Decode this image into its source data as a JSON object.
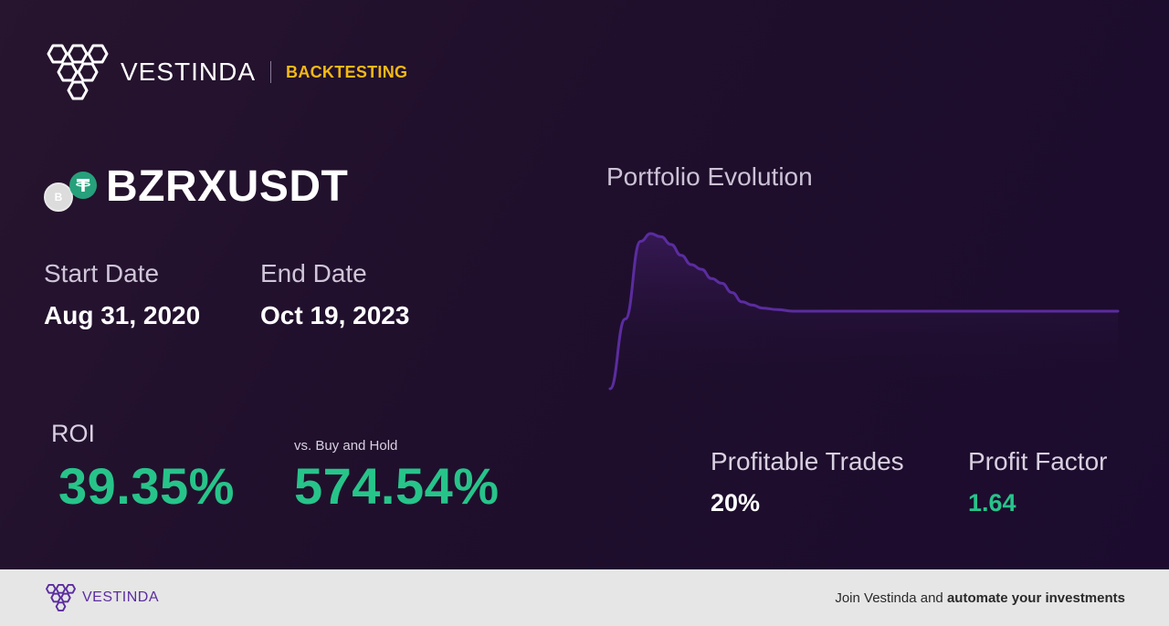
{
  "header": {
    "brand_name": "VESTINDA",
    "section_tag": "BACKTESTING"
  },
  "pair": {
    "symbol": "BZRXUSDT",
    "base_icon_letter": "B",
    "base_icon": "bzrx-coin-icon",
    "quote_icon": "tether-coin-icon"
  },
  "dates": {
    "start_label": "Start Date",
    "start_value": "Aug 31, 2020",
    "end_label": "End Date",
    "end_value": "Oct 19, 2023"
  },
  "metrics": {
    "roi_label": "ROI",
    "roi_value": "39.35%",
    "vs_label": "vs. Buy and Hold",
    "vs_value": "574.54%",
    "profitable_trades_label": "Profitable Trades",
    "profitable_trades_value": "20%",
    "profit_factor_label": "Profit Factor",
    "profit_factor_value": "1.64"
  },
  "chart": {
    "title": "Portfolio Evolution"
  },
  "chart_data": {
    "type": "area",
    "title": "Portfolio Evolution",
    "xlabel": "",
    "ylabel": "",
    "grid": false,
    "legend": "none",
    "x": [
      0,
      3,
      6,
      8,
      10,
      12,
      14,
      16,
      18,
      20,
      22,
      24,
      26,
      28,
      30,
      33,
      36,
      40,
      45,
      50,
      60,
      70,
      80,
      90,
      100
    ],
    "y": [
      0,
      45,
      95,
      100,
      98,
      93,
      86,
      80,
      77,
      71,
      68,
      62,
      56,
      54,
      52,
      51,
      50,
      50,
      50,
      50,
      50,
      50,
      50,
      50,
      50
    ],
    "ylim": [
      0,
      100
    ],
    "colors": {
      "line": "#5b2ca0",
      "fill_top": "#3a1a5c"
    }
  },
  "footer": {
    "brand_name": "VESTINDA",
    "cta_prefix": "Join Vestinda and ",
    "cta_bold": "automate your investments"
  },
  "colors": {
    "accent_gold": "#f5b914",
    "positive_green": "#27c48a",
    "brand_purple": "#5b2ca0",
    "background": "#1e0e2b"
  }
}
